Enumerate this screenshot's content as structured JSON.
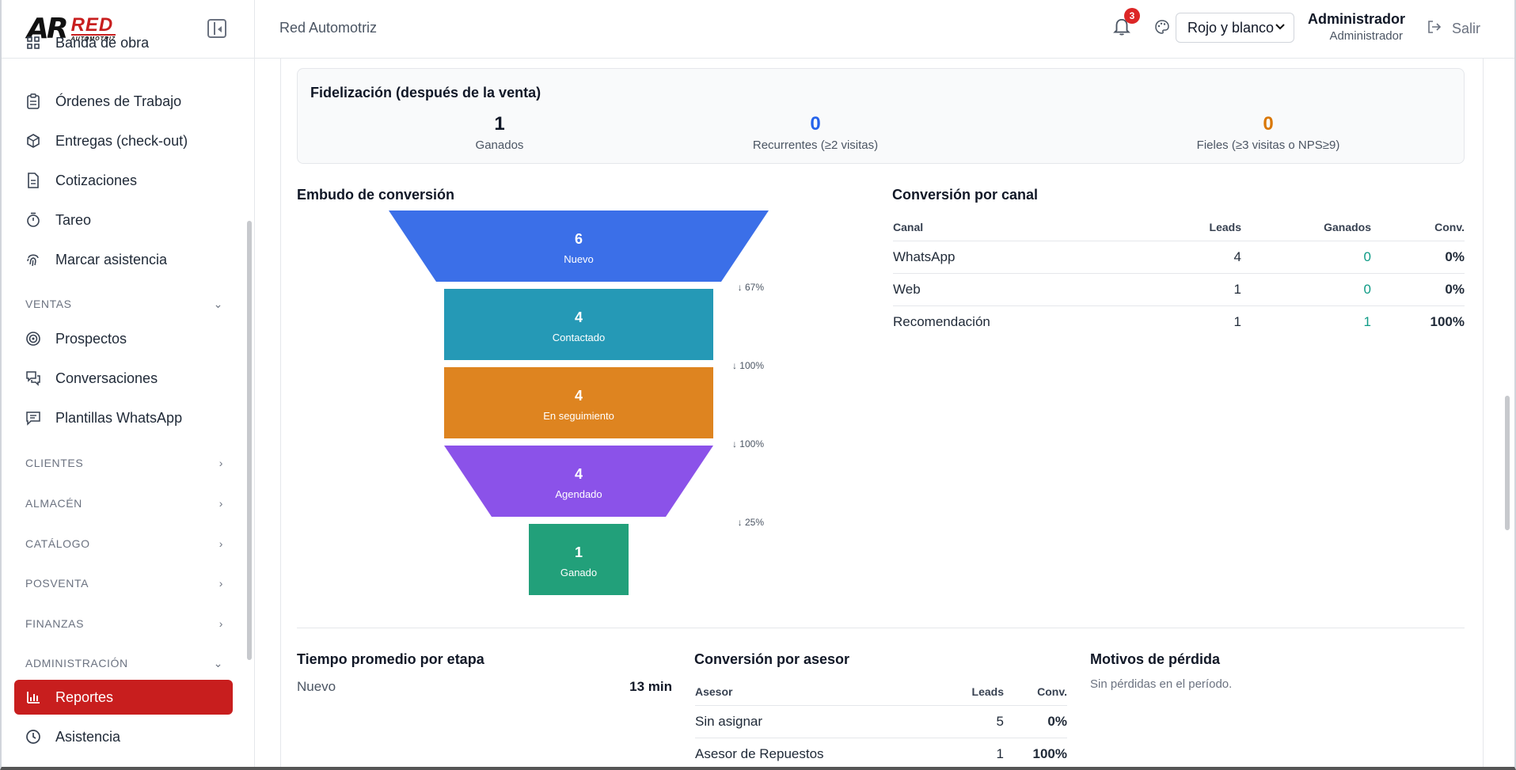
{
  "brand": {
    "mark": "AR",
    "name": "RED",
    "tagline": "AUTOMOTRIZ"
  },
  "sidebar": {
    "items": [
      {
        "label": "Banda de obra",
        "icon": "grid-icon",
        "glyph": "▫▫"
      },
      {
        "label": "Órdenes de Trabajo",
        "icon": "clipboard-icon",
        "glyph": "📋"
      },
      {
        "label": "Entregas (check-out)",
        "icon": "package-icon",
        "glyph": "⬡"
      },
      {
        "label": "Cotizaciones",
        "icon": "document-icon",
        "glyph": "🗎"
      },
      {
        "label": "Tareo",
        "icon": "timer-icon",
        "glyph": "⏱"
      },
      {
        "label": "Marcar asistencia",
        "icon": "fingerprint-icon",
        "glyph": "☝"
      }
    ],
    "sections": {
      "ventas": "VENTAS",
      "clientes": "CLIENTES",
      "almacen": "ALMACÉN",
      "catalogo": "CATÁLOGO",
      "posventa": "POSVENTA",
      "finanzas": "FINANZAS",
      "administracion": "ADMINISTRACIÓN"
    },
    "ventas_items": [
      {
        "label": "Prospectos",
        "icon": "target-icon",
        "glyph": "◎"
      },
      {
        "label": "Conversaciones",
        "icon": "chat-icon",
        "glyph": "🗪"
      },
      {
        "label": "Plantillas WhatsApp",
        "icon": "message-icon",
        "glyph": "🗨"
      }
    ],
    "admin_items": [
      {
        "label": "Reportes",
        "icon": "bar-chart-icon",
        "glyph": "📊"
      },
      {
        "label": "Asistencia",
        "icon": "clock-icon",
        "glyph": "🕓"
      }
    ]
  },
  "header": {
    "breadcrumb": "Red Automotriz",
    "notifications": "3",
    "theme": "Rojo y blanco",
    "user_name": "Administrador",
    "user_role": "Administrador",
    "logout": "Salir"
  },
  "fidelizacion": {
    "title": "Fidelización (después de la venta)",
    "stats": [
      {
        "value": "1",
        "label": "Ganados",
        "color": "#111827"
      },
      {
        "value": "0",
        "label": "Recurrentes (≥2 visitas)",
        "color": "#2563eb"
      },
      {
        "value": "0",
        "label": "Fieles (≥3 visitas o NPS≥9)",
        "color": "#d97706"
      }
    ]
  },
  "funnel": {
    "title": "Embudo de conversión",
    "stages": [
      {
        "value": "6",
        "name": "Nuevo",
        "color": "#3b6fe8"
      },
      {
        "value": "4",
        "name": "Contactado",
        "color": "#2599b6"
      },
      {
        "value": "4",
        "name": "En seguimiento",
        "color": "#de8420"
      },
      {
        "value": "4",
        "name": "Agendado",
        "color": "#8b52e9"
      },
      {
        "value": "1",
        "name": "Ganado",
        "color": "#22a07a"
      }
    ],
    "drops": [
      "↓ 67%",
      "↓ 100%",
      "↓ 100%",
      "↓ 25%"
    ]
  },
  "canal": {
    "title": "Conversión por canal",
    "headers": [
      "Canal",
      "Leads",
      "Ganados",
      "Conv."
    ],
    "rows": [
      {
        "canal": "WhatsApp",
        "leads": "4",
        "ganados": "0",
        "conv": "0%"
      },
      {
        "canal": "Web",
        "leads": "1",
        "ganados": "0",
        "conv": "0%"
      },
      {
        "canal": "Recomendación",
        "leads": "1",
        "ganados": "1",
        "conv": "100%"
      }
    ]
  },
  "tiempo": {
    "title": "Tiempo promedio por etapa",
    "rows": [
      {
        "stage": "Nuevo",
        "time": "13 min"
      }
    ]
  },
  "asesor": {
    "title": "Conversión por asesor",
    "headers": [
      "Asesor",
      "Leads",
      "Conv."
    ],
    "rows": [
      {
        "asesor": "Sin asignar",
        "leads": "5",
        "conv": "0%"
      },
      {
        "asesor": "Asesor de Repuestos",
        "leads": "1",
        "conv": "100%"
      }
    ]
  },
  "perdida": {
    "title": "Motivos de pérdida",
    "empty": "Sin pérdidas en el período."
  }
}
